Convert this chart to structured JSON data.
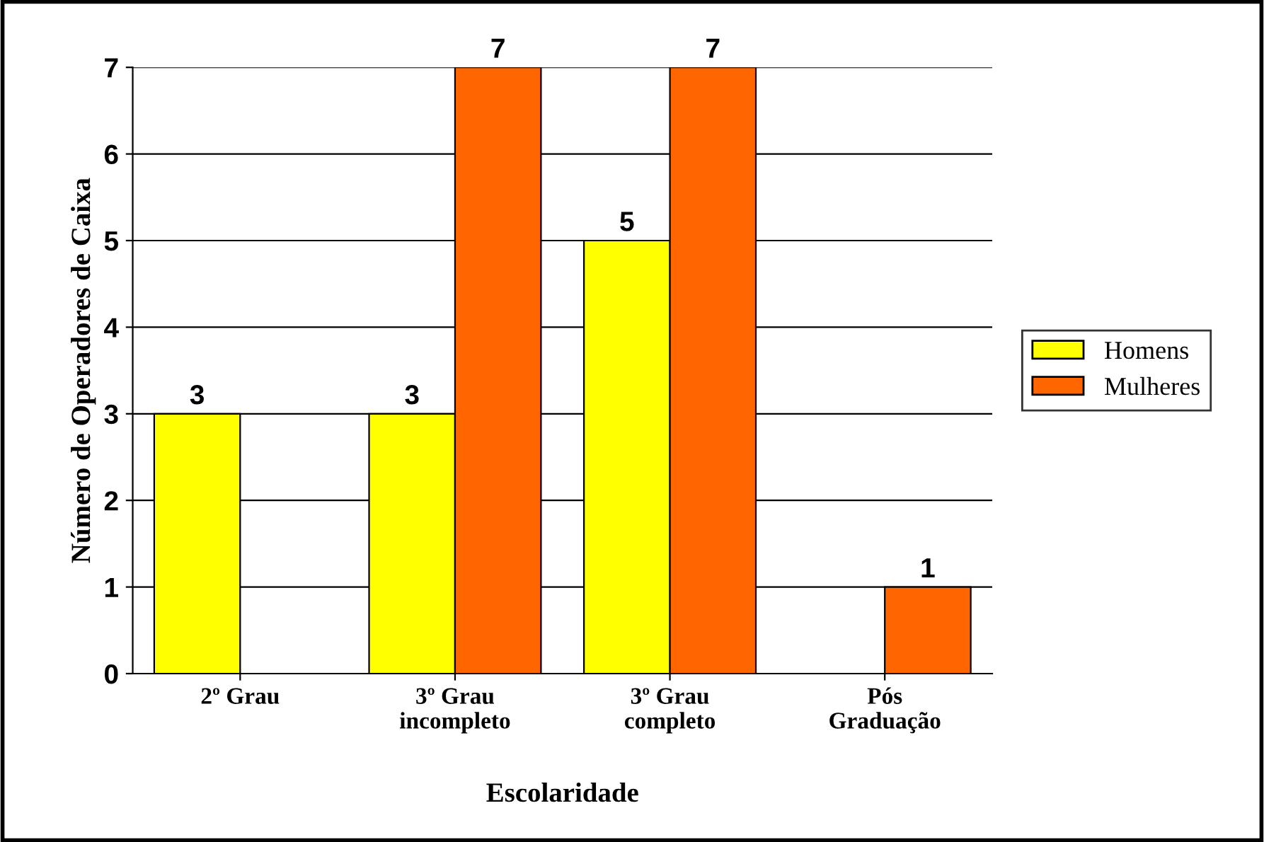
{
  "chart_data": {
    "type": "bar",
    "xlabel": "Escolaridade",
    "ylabel": "Número de Operadores de Caixa",
    "categories": [
      "2º Grau",
      "3º Grau\nincompleto",
      "3º Grau\ncompleto",
      "Pós\nGraduação"
    ],
    "series": [
      {
        "name": "Homens",
        "color": "#ffff00",
        "values": [
          3,
          3,
          5,
          null
        ]
      },
      {
        "name": "Mulheres",
        "color": "#ff6600",
        "values": [
          null,
          7,
          7,
          1
        ]
      }
    ],
    "ylim": [
      0,
      7
    ],
    "yticks": [
      0,
      1,
      2,
      3,
      4,
      5,
      6,
      7
    ],
    "grid": "y",
    "legend": "right",
    "data_labels": true
  }
}
